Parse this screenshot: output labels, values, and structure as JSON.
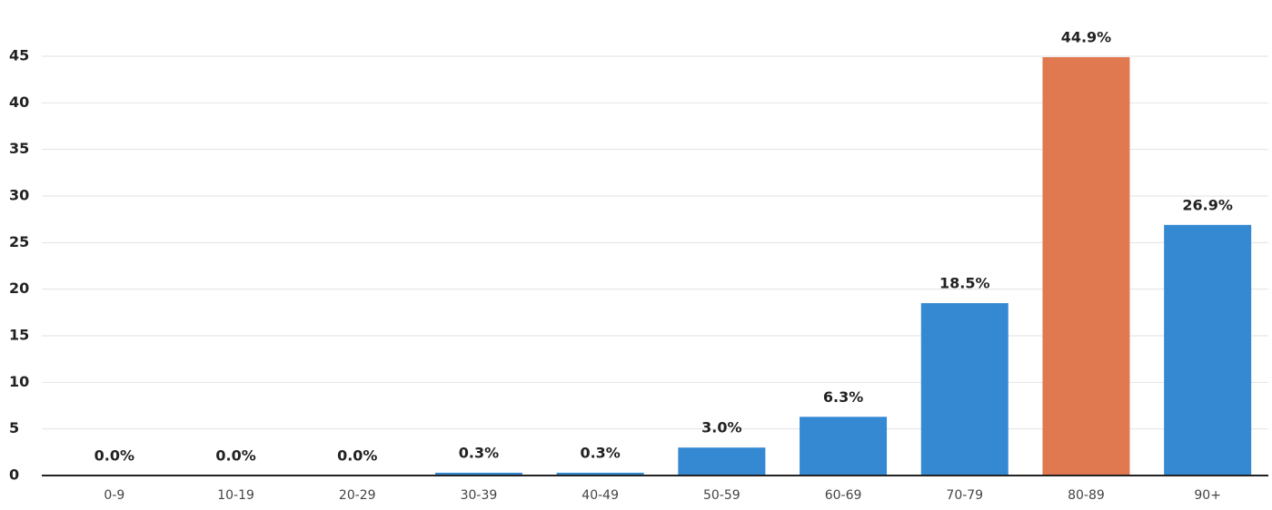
{
  "chart_data": {
    "type": "bar",
    "categories": [
      "0-9",
      "10-19",
      "20-29",
      "30-39",
      "40-49",
      "50-59",
      "60-69",
      "70-79",
      "80-89",
      "90+"
    ],
    "values": [
      0,
      0,
      0,
      0.3,
      0.3,
      3.0,
      6.3,
      18.5,
      44.9,
      26.9
    ],
    "value_labels": [
      "0.0%",
      "0.0%",
      "0.0%",
      "0.3%",
      "0.3%",
      "3.0%",
      "6.3%",
      "18.5%",
      "44.9%",
      "26.9%"
    ],
    "colors": [
      "#3589d3",
      "#3589d3",
      "#3589d3",
      "#3589d3",
      "#3589d3",
      "#3589d3",
      "#3589d3",
      "#3589d3",
      "#e07850",
      "#3589d3"
    ],
    "ylim": [
      0,
      45
    ],
    "yticks": [
      0,
      5,
      10,
      15,
      20,
      25,
      30,
      35,
      40,
      45
    ],
    "grid": true
  }
}
